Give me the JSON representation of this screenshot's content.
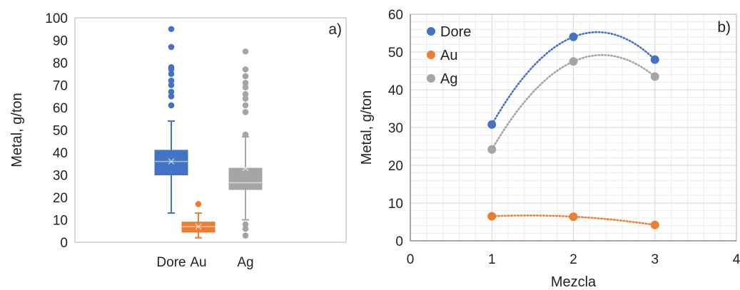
{
  "chart_data": [
    {
      "type": "box",
      "panel_label": "a)",
      "ylabel": "Metal, g/ton",
      "xlabel": "",
      "ylim": [
        0,
        100
      ],
      "yticks": [
        "0",
        "10",
        "20",
        "30",
        "40",
        "50",
        "60",
        "70",
        "80",
        "90",
        "100"
      ],
      "grid": false,
      "categories": [
        "Dore",
        "Au",
        "Ag"
      ],
      "boxes": [
        {
          "name": "Dore",
          "color": "#4472C4",
          "q1": 30,
          "median": 36,
          "q3": 41,
          "mean": 36,
          "whisker_low": 13,
          "whisker_high": 54,
          "outliers": [
            61,
            65,
            67,
            70,
            72,
            75,
            77,
            78,
            87,
            95
          ]
        },
        {
          "name": "Au",
          "color": "#ED7D31",
          "q1": 4.5,
          "median": 7,
          "q3": 9,
          "mean": 7,
          "whisker_low": 2,
          "whisker_high": 13,
          "outliers": [
            17
          ]
        },
        {
          "name": "Ag",
          "color": "#A5A5A5",
          "q1": 23.5,
          "median": 26.5,
          "q3": 33,
          "mean": 33,
          "whisker_low": 10,
          "whisker_high": 47,
          "outliers": [
            3,
            6,
            8,
            48,
            58,
            61,
            64,
            66,
            69,
            71,
            74,
            77,
            85
          ]
        }
      ]
    },
    {
      "type": "scatter",
      "panel_label": "b)",
      "xlabel": "Mezcla",
      "ylabel": "Metal, g/ton",
      "xlim": [
        0,
        4
      ],
      "ylim": [
        0,
        60
      ],
      "xticks": [
        "0",
        "1",
        "2",
        "3",
        "4"
      ],
      "yticks": [
        "0",
        "10",
        "20",
        "30",
        "40",
        "50",
        "60"
      ],
      "grid": true,
      "legend_position": "top-left",
      "trendline": "polynomial, dotted",
      "x": [
        1,
        2,
        3
      ],
      "series": [
        {
          "name": "Dore",
          "color": "#4472C4",
          "values": [
            30.8,
            54,
            48
          ]
        },
        {
          "name": "Au",
          "color": "#ED7D31",
          "values": [
            6.5,
            6.4,
            4.2
          ]
        },
        {
          "name": "Ag",
          "color": "#A5A5A5",
          "values": [
            24.2,
            47.5,
            43.5
          ]
        }
      ]
    }
  ]
}
